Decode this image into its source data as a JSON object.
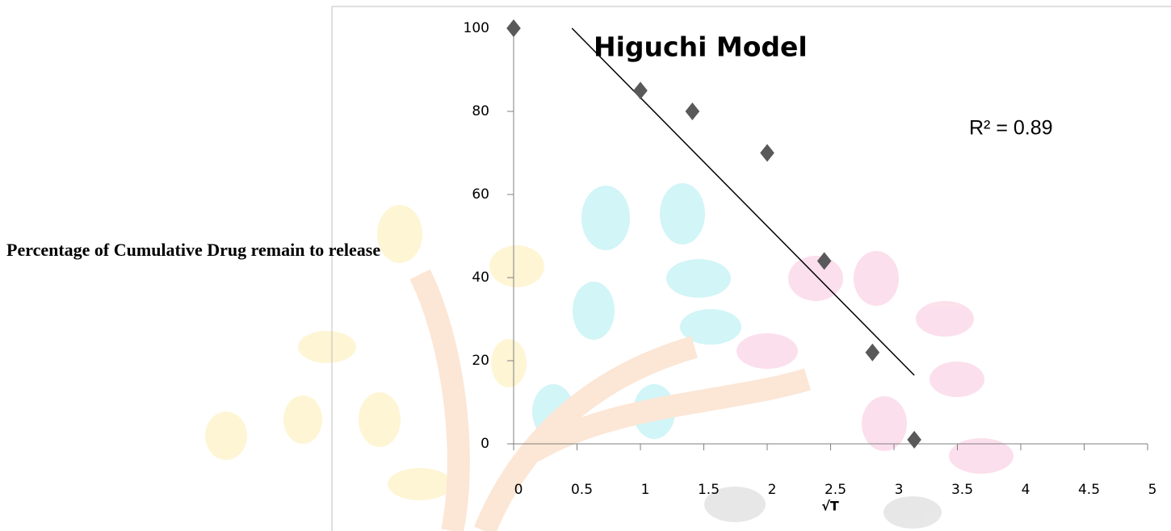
{
  "chart_data": {
    "type": "scatter",
    "title": "Higuchi Model",
    "x_label": "√T",
    "y_label": "Percentage of Cumulative Drug remain to release",
    "annotation": "R² = 0.89",
    "x": [
      0,
      1,
      1.41,
      2,
      2.45,
      2.83,
      3.16
    ],
    "values": [
      100,
      85,
      80,
      70,
      44,
      22,
      1
    ],
    "color": "#595959",
    "trendline": {
      "x": [
        0.46,
        3.16
      ],
      "values": [
        100,
        16.5
      ],
      "color": "#000000"
    },
    "xlim": [
      0,
      5
    ],
    "xticks": [
      0,
      0.5,
      1,
      1.5,
      2,
      2.5,
      3,
      3.5,
      4,
      4.5,
      5
    ],
    "ylim": [
      0,
      100
    ],
    "yticks": [
      0,
      20,
      40,
      60,
      80,
      100
    ]
  }
}
